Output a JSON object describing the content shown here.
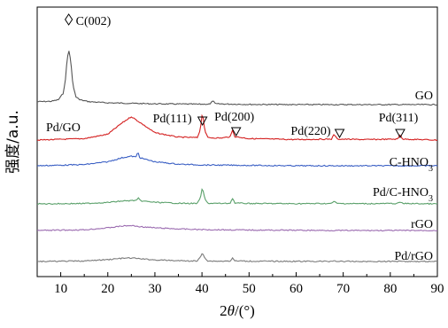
{
  "chart_data": {
    "type": "line",
    "xlabel_prefix": "2",
    "xlabel_theta": "θ",
    "xlabel_suffix": "/(°)",
    "ylabel": "强度/a.u.",
    "xlim": [
      5,
      90
    ],
    "xticks": [
      10,
      20,
      30,
      40,
      50,
      60,
      70,
      80,
      90
    ],
    "grid": false,
    "series": [
      {
        "name": "GO",
        "color": "#555555",
        "baseline": 0.93,
        "points": [
          [
            5,
            1.08
          ],
          [
            8,
            1.1
          ],
          [
            9.5,
            1.18
          ],
          [
            10.5,
            1.5
          ],
          [
            11,
            2.2
          ],
          [
            11.4,
            3.4
          ],
          [
            11.8,
            3.7
          ],
          [
            12.2,
            3.0
          ],
          [
            12.6,
            1.9
          ],
          [
            13.2,
            1.35
          ],
          [
            14,
            1.18
          ],
          [
            16,
            1.08
          ],
          [
            20,
            1.02
          ],
          [
            30,
            0.97
          ],
          [
            40,
            0.95
          ],
          [
            41.8,
            0.96
          ],
          [
            42.3,
            1.15
          ],
          [
            42.8,
            0.97
          ],
          [
            50,
            0.94
          ],
          [
            60,
            0.93
          ],
          [
            70,
            0.93
          ],
          [
            80,
            0.93
          ],
          [
            90,
            0.93
          ]
        ]
      },
      {
        "name": "Pd/GO",
        "color": "#d42020",
        "baseline": 0.0,
        "points": [
          [
            5,
            0.0
          ],
          [
            15,
            0.03
          ],
          [
            20,
            0.12
          ],
          [
            23,
            0.35
          ],
          [
            25,
            0.48
          ],
          [
            27,
            0.35
          ],
          [
            30,
            0.15
          ],
          [
            35,
            0.06
          ],
          [
            39,
            0.05
          ],
          [
            39.6,
            0.2
          ],
          [
            40.1,
            0.57
          ],
          [
            40.6,
            0.2
          ],
          [
            41.2,
            0.05
          ],
          [
            44,
            0.04
          ],
          [
            46,
            0.07
          ],
          [
            46.5,
            0.2
          ],
          [
            47,
            0.07
          ],
          [
            50,
            0.03
          ],
          [
            60,
            0.01
          ],
          [
            67.5,
            0.02
          ],
          [
            68.1,
            0.12
          ],
          [
            68.7,
            0.02
          ],
          [
            75,
            0.01
          ],
          [
            81.6,
            0.02
          ],
          [
            82.1,
            0.12
          ],
          [
            82.6,
            0.02
          ],
          [
            90,
            0.0
          ]
        ]
      },
      {
        "name": "C-HNO",
        "name_sub": "3",
        "color": "#3a5fc4",
        "baseline": 0.0,
        "points": [
          [
            5,
            0.0
          ],
          [
            15,
            0.03
          ],
          [
            20,
            0.1
          ],
          [
            23,
            0.2
          ],
          [
            25,
            0.24
          ],
          [
            26,
            0.22
          ],
          [
            26.4,
            0.35
          ],
          [
            26.8,
            0.2
          ],
          [
            30,
            0.1
          ],
          [
            35,
            0.04
          ],
          [
            40,
            0.02
          ],
          [
            50,
            0.01
          ],
          [
            60,
            0.0
          ],
          [
            70,
            0.0
          ],
          [
            80,
            0.0
          ],
          [
            90,
            0.0
          ]
        ]
      },
      {
        "name": "Pd/C-HNO",
        "name_sub": "3",
        "color": "#5aa06a",
        "baseline": 0.0,
        "points": [
          [
            5,
            0.0
          ],
          [
            15,
            0.02
          ],
          [
            20,
            0.07
          ],
          [
            23,
            0.14
          ],
          [
            25,
            0.16
          ],
          [
            26.2,
            0.18
          ],
          [
            26.5,
            0.28
          ],
          [
            26.9,
            0.15
          ],
          [
            30,
            0.08
          ],
          [
            35,
            0.03
          ],
          [
            39,
            0.02
          ],
          [
            39.6,
            0.25
          ],
          [
            40.1,
            0.8
          ],
          [
            40.6,
            0.25
          ],
          [
            41.2,
            0.03
          ],
          [
            45,
            0.02
          ],
          [
            46,
            0.04
          ],
          [
            46.5,
            0.28
          ],
          [
            47,
            0.04
          ],
          [
            50,
            0.02
          ],
          [
            60,
            0.01
          ],
          [
            67.6,
            0.02
          ],
          [
            68.1,
            0.15
          ],
          [
            68.6,
            0.02
          ],
          [
            75,
            0.01
          ],
          [
            81.6,
            0.02
          ],
          [
            82.1,
            0.1
          ],
          [
            82.6,
            0.02
          ],
          [
            90,
            0.0
          ]
        ]
      },
      {
        "name": "rGO",
        "color": "#9b6bb0",
        "baseline": 0.0,
        "points": [
          [
            5,
            0.0
          ],
          [
            15,
            0.03
          ],
          [
            20,
            0.12
          ],
          [
            23,
            0.2
          ],
          [
            25,
            0.22
          ],
          [
            27,
            0.17
          ],
          [
            30,
            0.12
          ],
          [
            35,
            0.07
          ],
          [
            40,
            0.04
          ],
          [
            50,
            0.02
          ],
          [
            60,
            0.01
          ],
          [
            70,
            0.0
          ],
          [
            80,
            0.0
          ],
          [
            90,
            0.0
          ]
        ]
      },
      {
        "name": "Pd/rGO",
        "color": "#7a7a7a",
        "baseline": 0.0,
        "points": [
          [
            5,
            0.0
          ],
          [
            15,
            0.03
          ],
          [
            20,
            0.12
          ],
          [
            23,
            0.2
          ],
          [
            25,
            0.22
          ],
          [
            27,
            0.17
          ],
          [
            30,
            0.1
          ],
          [
            35,
            0.05
          ],
          [
            39,
            0.03
          ],
          [
            39.6,
            0.25
          ],
          [
            40.1,
            0.55
          ],
          [
            40.6,
            0.25
          ],
          [
            41.2,
            0.03
          ],
          [
            45,
            0.02
          ],
          [
            46,
            0.04
          ],
          [
            46.5,
            0.2
          ],
          [
            47,
            0.04
          ],
          [
            50,
            0.02
          ],
          [
            60,
            0.01
          ],
          [
            67.6,
            0.01
          ],
          [
            68.1,
            0.07
          ],
          [
            68.6,
            0.01
          ],
          [
            75,
            0.0
          ],
          [
            81.6,
            0.01
          ],
          [
            82.1,
            0.06
          ],
          [
            82.6,
            0.01
          ],
          [
            90,
            0.0
          ]
        ]
      }
    ],
    "annotations": [
      {
        "text": "C(002)",
        "marker": "diamond",
        "x": 11.7,
        "series": "GO"
      },
      {
        "text": "Pd(111)",
        "marker": "triangle-down",
        "x": 40.1,
        "series": "Pd/GO"
      },
      {
        "text": "Pd(200)",
        "marker": "triangle-down",
        "x": 46.5,
        "series": "Pd/GO"
      },
      {
        "text": "Pd(220)",
        "marker": "triangle-down",
        "x": 68.1,
        "series": "Pd/GO"
      },
      {
        "text": "Pd(311)",
        "marker": "triangle-down",
        "x": 82.1,
        "series": "Pd/GO"
      }
    ]
  }
}
